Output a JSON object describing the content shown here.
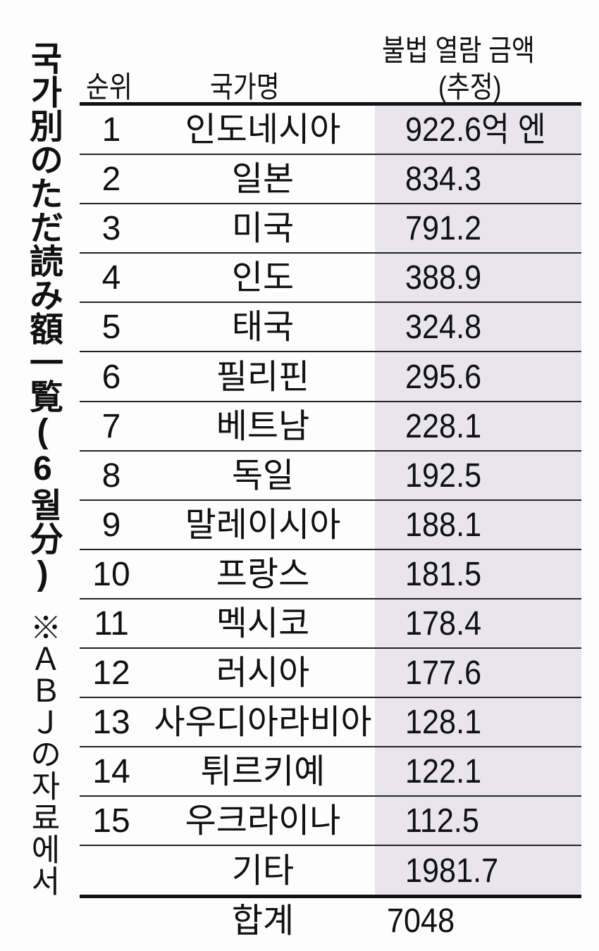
{
  "title": "국가別のただ読み額一覧(6월分)",
  "note": "※ＡＢＪの자료에서",
  "headers": {
    "rank": "순위",
    "country": "국가명",
    "amount_line1": "불법 열람 금액",
    "amount_line2": "(추정)"
  },
  "rows": [
    {
      "rank": "1",
      "country": "인도네시아",
      "amount": "922.6억 엔"
    },
    {
      "rank": "2",
      "country": "일본",
      "amount": "834.3"
    },
    {
      "rank": "3",
      "country": "미국",
      "amount": "791.2"
    },
    {
      "rank": "4",
      "country": "인도",
      "amount": "388.9"
    },
    {
      "rank": "5",
      "country": "태국",
      "amount": "324.8"
    },
    {
      "rank": "6",
      "country": "필리핀",
      "amount": "295.6"
    },
    {
      "rank": "7",
      "country": "베트남",
      "amount": "228.1"
    },
    {
      "rank": "8",
      "country": "독일",
      "amount": "192.5"
    },
    {
      "rank": "9",
      "country": "말레이시아",
      "amount": "188.1"
    },
    {
      "rank": "10",
      "country": "프랑스",
      "amount": "181.5"
    },
    {
      "rank": "11",
      "country": "멕시코",
      "amount": "178.4"
    },
    {
      "rank": "12",
      "country": "러시아",
      "amount": "177.6"
    },
    {
      "rank": "13",
      "country": "사우디아라비아",
      "amount": "128.1"
    },
    {
      "rank": "14",
      "country": "튀르키예",
      "amount": "122.1"
    },
    {
      "rank": "15",
      "country": "우크라이나",
      "amount": "112.5"
    },
    {
      "rank": "",
      "country": "기타",
      "amount": "1981.7"
    }
  ],
  "total": {
    "label": "합계",
    "amount": "7048"
  },
  "colors": {
    "shade": "#e9e5ef",
    "text": "#111111"
  }
}
